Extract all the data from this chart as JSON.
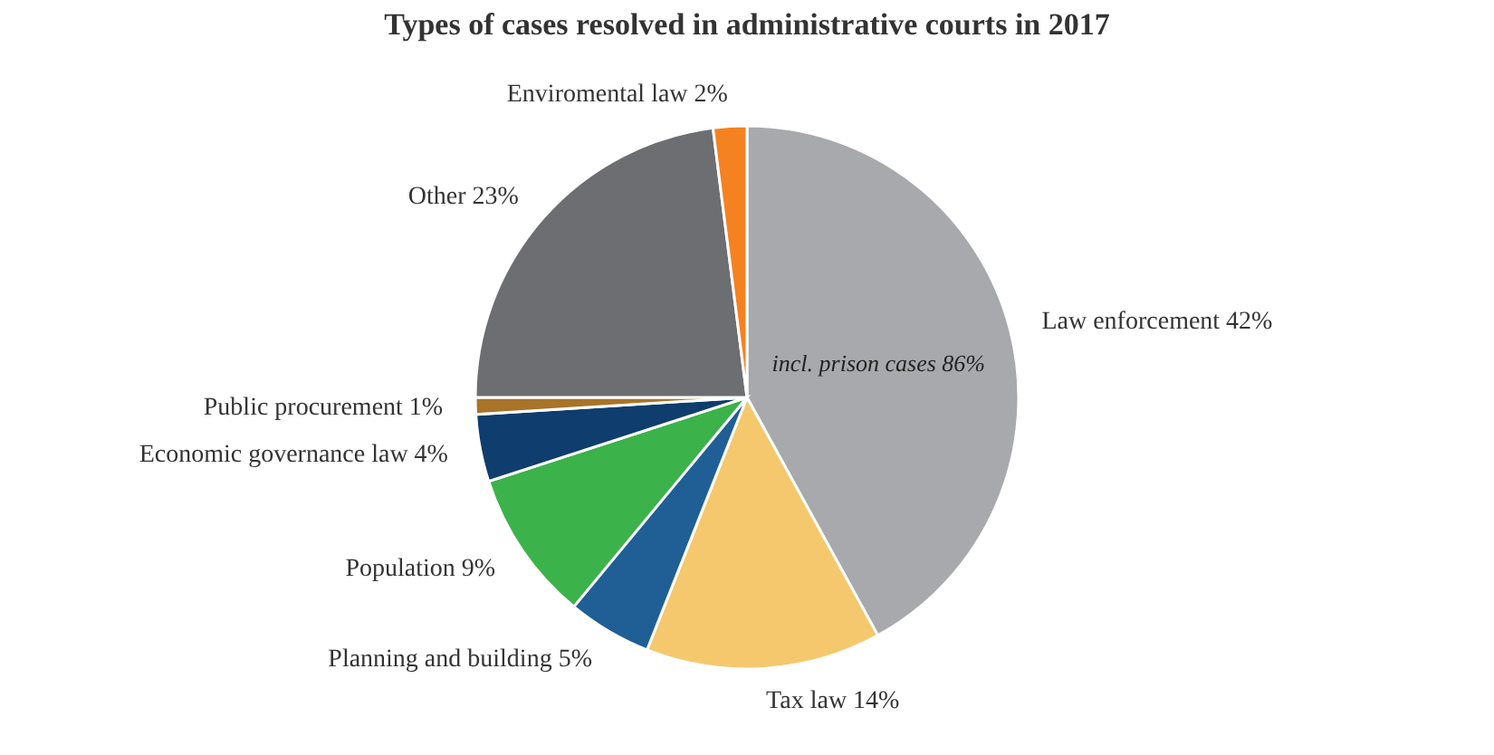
{
  "chart_data": {
    "type": "pie",
    "title": "Types of cases resolved in administrative courts in 2017",
    "categories": [
      "Law enforcement",
      "Tax law",
      "Planning and building",
      "Population",
      "Economic governance law",
      "Public procurement",
      "Other",
      "Enviromental law"
    ],
    "values": [
      42,
      14,
      5,
      9,
      4,
      1,
      23,
      2
    ],
    "value_labels": [
      "42%",
      "14%",
      "5%",
      "9%",
      "4%",
      "1%",
      "23%",
      "2%"
    ],
    "colors": [
      "#a7a9ac",
      "#f5c86e",
      "#1f5f96",
      "#3cb24a",
      "#0e3d6e",
      "#a8742a",
      "#6d6e71",
      "#f58220"
    ],
    "annotations": [
      {
        "text": "incl. prison cases 86%",
        "x": "Law enforcement"
      }
    ],
    "legend": false
  }
}
